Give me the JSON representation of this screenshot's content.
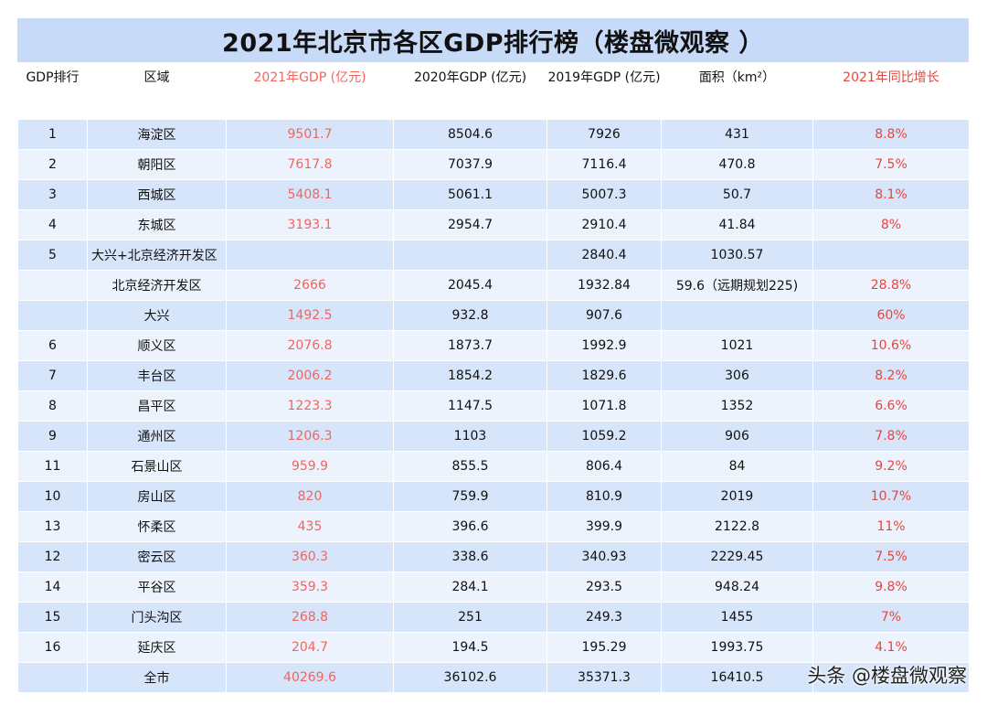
{
  "title": "2021年北京市各区GDP排行榜（楼盘微观察 ）",
  "headers": [
    "GDP排行",
    "区域",
    "2021年GDP (亿元)",
    "2020年GDP (亿元)",
    "2019年GDP (亿元)",
    "面积（km²）",
    "2021年同比增长"
  ],
  "rows": [
    [
      "1",
      "海淀区",
      "9501.7",
      "8504.6",
      "7926",
      "431",
      "8.8%"
    ],
    [
      "2",
      "朝阳区",
      "7617.8",
      "7037.9",
      "7116.4",
      "470.8",
      "7.5%"
    ],
    [
      "3",
      "西城区",
      "5408.1",
      "5061.1",
      "5007.3",
      "50.7",
      "8.1%"
    ],
    [
      "4",
      "东城区",
      "3193.1",
      "2954.7",
      "2910.4",
      "41.84",
      "8%"
    ],
    [
      "5",
      "大兴+北京经济开发区",
      "",
      "",
      "2840.4",
      "1030.57",
      ""
    ],
    [
      "",
      "北京经济开发区",
      "2666",
      "2045.4",
      "1932.84",
      "59.6（远期规划225)",
      "28.8%"
    ],
    [
      "",
      "大兴",
      "1492.5",
      "932.8",
      "907.6",
      "",
      "60%"
    ],
    [
      "6",
      "顺义区",
      "2076.8",
      "1873.7",
      "1992.9",
      "1021",
      "10.6%"
    ],
    [
      "7",
      "丰台区",
      "2006.2",
      "1854.2",
      "1829.6",
      "306",
      "8.2%"
    ],
    [
      "8",
      "昌平区",
      "1223.3",
      "1147.5",
      "1071.8",
      "1352",
      "6.6%"
    ],
    [
      "9",
      "通州区",
      "1206.3",
      "1103",
      "1059.2",
      "906",
      "7.8%"
    ],
    [
      "11",
      "石景山区",
      "959.9",
      "855.5",
      "806.4",
      "84",
      "9.2%"
    ],
    [
      "10",
      "房山区",
      "820",
      "759.9",
      "810.9",
      "2019",
      "10.7%"
    ],
    [
      "13",
      "怀柔区",
      "435",
      "396.6",
      "399.9",
      "2122.8",
      "11%"
    ],
    [
      "12",
      "密云区",
      "360.3",
      "338.6",
      "340.93",
      "2229.45",
      "7.5%"
    ],
    [
      "14",
      "平谷区",
      "359.3",
      "284.1",
      "293.5",
      "948.24",
      "9.8%"
    ],
    [
      "15",
      "门头沟区",
      "268.8",
      "251",
      "249.3",
      "1455",
      "7%"
    ],
    [
      "16",
      "延庆区",
      "204.7",
      "194.5",
      "195.29",
      "1993.75",
      "4.1%"
    ],
    [
      "",
      "全市",
      "40269.6",
      "36102.6",
      "35371.3",
      "16410.5",
      ""
    ]
  ],
  "watermark": "头条 @楼盘微观察",
  "colors": {
    "header_bg": "#c7daf7",
    "row_odd": "#d6e5fa",
    "row_even": "#edf3fd",
    "accent_red": "#e8453c",
    "accent_salmon": "#f0655e"
  }
}
